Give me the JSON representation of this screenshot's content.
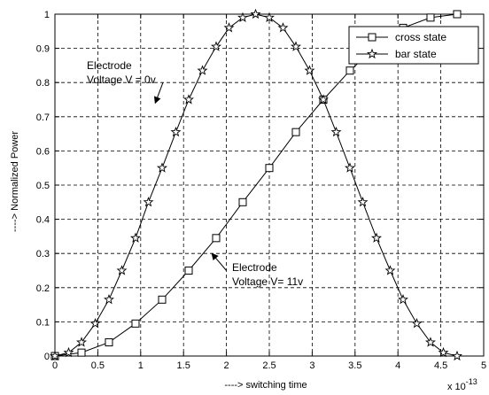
{
  "chart_data": {
    "type": "line",
    "xlabel": "----> switching time",
    "ylabel": "----> Normalized Power",
    "x_exponent_label": "x 10",
    "x_exponent_power": "-13",
    "xlim": [
      0,
      5
    ],
    "ylim": [
      0,
      1
    ],
    "xticks": [
      "0",
      "0.5",
      "1",
      "1.5",
      "2",
      "2.5",
      "3",
      "3.5",
      "4",
      "4.5",
      "5"
    ],
    "yticks": [
      "0",
      "0.1",
      "0.2",
      "0.3",
      "0.4",
      "0.5",
      "0.6",
      "0.7",
      "0.8",
      "0.9",
      "1"
    ],
    "grid": true,
    "legend_position": "top-right",
    "series": [
      {
        "name": "cross state",
        "marker": "square",
        "x": [
          0,
          0.31,
          0.63,
          0.94,
          1.25,
          1.56,
          1.88,
          2.19,
          2.5,
          2.81,
          3.13,
          3.44,
          3.75,
          4.06,
          4.38,
          4.69
        ],
        "y": [
          0,
          0.01,
          0.04,
          0.095,
          0.165,
          0.25,
          0.345,
          0.45,
          0.55,
          0.655,
          0.75,
          0.835,
          0.905,
          0.96,
          0.99,
          1.0
        ]
      },
      {
        "name": "bar state",
        "marker": "star",
        "x": [
          0,
          0.16,
          0.31,
          0.47,
          0.63,
          0.78,
          0.94,
          1.09,
          1.25,
          1.41,
          1.56,
          1.72,
          1.88,
          2.03,
          2.19,
          2.34,
          2.5,
          2.66,
          2.81,
          2.97,
          3.13,
          3.28,
          3.44,
          3.59,
          3.75,
          3.91,
          4.06,
          4.22,
          4.38,
          4.53,
          4.69
        ],
        "y": [
          0,
          0.01,
          0.04,
          0.095,
          0.165,
          0.25,
          0.345,
          0.45,
          0.55,
          0.655,
          0.75,
          0.835,
          0.905,
          0.96,
          0.99,
          1.0,
          0.99,
          0.96,
          0.905,
          0.835,
          0.75,
          0.655,
          0.55,
          0.45,
          0.345,
          0.25,
          0.165,
          0.095,
          0.04,
          0.01,
          0
        ]
      }
    ],
    "annotations": [
      {
        "line1": "Electrode",
        "line2": "Voltage V = 0v",
        "arrow_from": [
          1.26,
          0.8
        ],
        "arrow_to": [
          1.17,
          0.74
        ]
      },
      {
        "line1": "Electrode",
        "line2": "Voltage V= 11v",
        "arrow_from": [
          2.0,
          0.25
        ],
        "arrow_to": [
          1.83,
          0.3
        ]
      }
    ]
  }
}
